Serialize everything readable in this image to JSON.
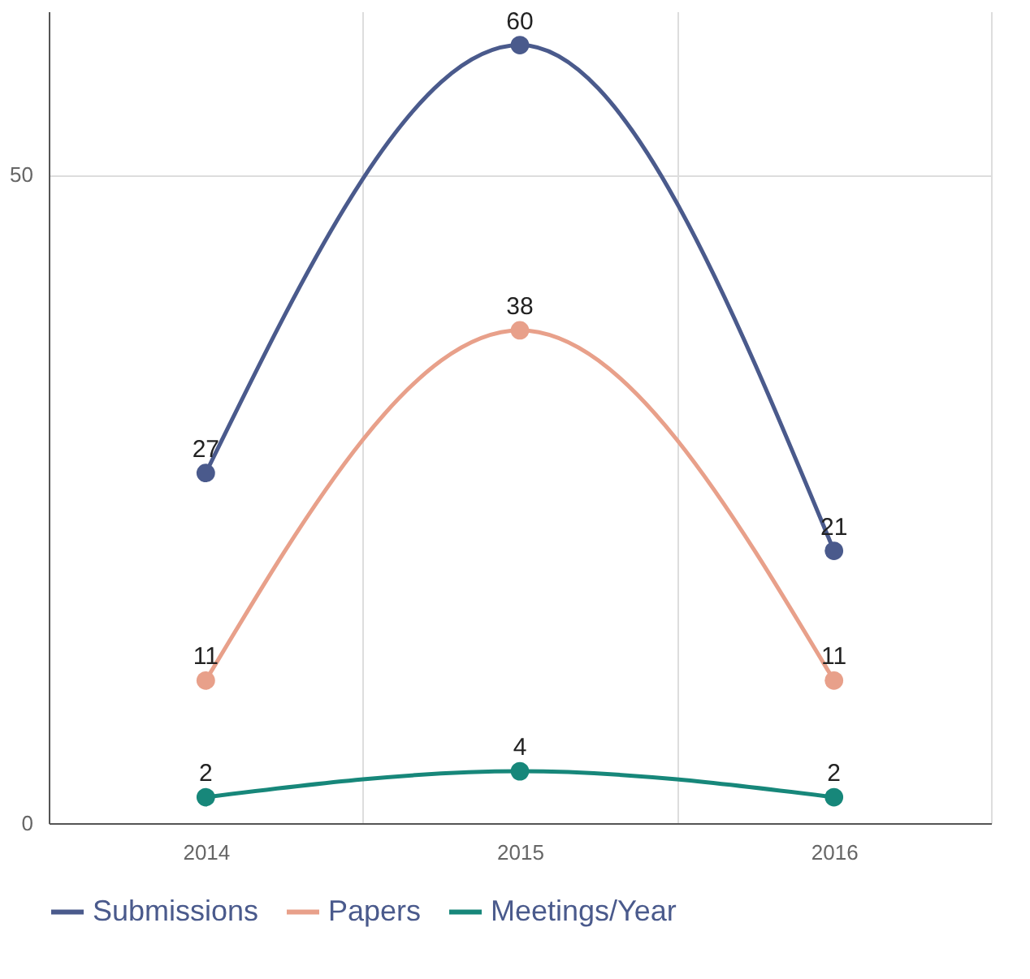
{
  "chart_data": {
    "type": "line",
    "categories": [
      "2014",
      "2015",
      "2016"
    ],
    "series": [
      {
        "name": "Submissions",
        "color": "#4a5a8c",
        "values": [
          27,
          60,
          21
        ]
      },
      {
        "name": "Papers",
        "color": "#e8a08a",
        "values": [
          11,
          38,
          11
        ]
      },
      {
        "name": "Meetings/Year",
        "color": "#17877a",
        "values": [
          2,
          4,
          2
        ]
      }
    ],
    "ylim": [
      0,
      62.6
    ],
    "yticks": [
      0,
      50
    ],
    "grid": true,
    "legend": "bottom",
    "marker": "circle",
    "line_style": "solid",
    "data_labels": true
  }
}
